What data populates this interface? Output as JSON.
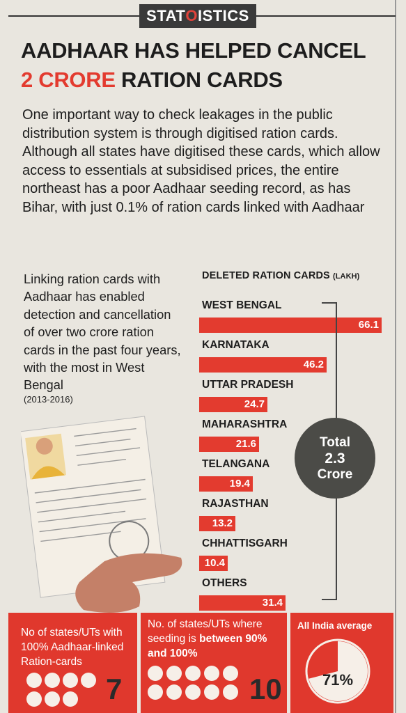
{
  "header": {
    "badge_pre": "STAT",
    "badge_hl": "O",
    "badge_post": "ISTICS",
    "title_line1": "AADHAAR HAS HELPED CANCEL",
    "title_red": "2 CRORE",
    "title_rest": " RATION CARDS"
  },
  "intro": "One important way to check leakages in the public distribution system is through digitised ration cards. Although all states have digitised these cards, which allow access to essentials at subsidised prices, the entire northeast has a poor Aadhaar seeding record, as has Bihar, with just 0.1% of ration cards linked with Aadhaar",
  "side": {
    "text": "Linking ration cards with Aadhaar has enabled detection and cancellation of over two crore ration cards in the past four years, with the most in West Bengal",
    "years": "(2013-2016)"
  },
  "chart_data": {
    "type": "bar",
    "title": "DELETED RATION CARDS",
    "unit": "(LAKH)",
    "categories": [
      "WEST BENGAL",
      "KARNATAKA",
      "UTTAR PRADESH",
      "MAHARASHTRA",
      "TELANGANA",
      "RAJASTHAN",
      "CHHATTISGARH",
      "OTHERS"
    ],
    "values": [
      66.1,
      46.2,
      24.7,
      21.6,
      19.4,
      13.2,
      10.4,
      31.4
    ],
    "value_labels": [
      "66.1",
      "46.2",
      "24.7",
      "21.6",
      "19.4",
      "13.2",
      "10.4",
      "31.4"
    ],
    "total": {
      "line1": "Total",
      "line2": "2.3",
      "line3": "Crore"
    },
    "bar_color": "#e33b2f"
  },
  "panels": {
    "p1": {
      "label": "No of states/UTs with 100% Aadhaar-linked Ration-cards",
      "value": "7",
      "dots": 7
    },
    "p2": {
      "label_pre": "No. of states/UTs where seeding is ",
      "label_bold": "between 90% and 100%",
      "value": "10",
      "dots": 10
    },
    "p3": {
      "label": "All India average",
      "value": "71%",
      "fraction": 0.71
    }
  },
  "colors": {
    "accent": "#e33b2f",
    "dark": "#4b4b47",
    "paper": "#e9e6df"
  }
}
